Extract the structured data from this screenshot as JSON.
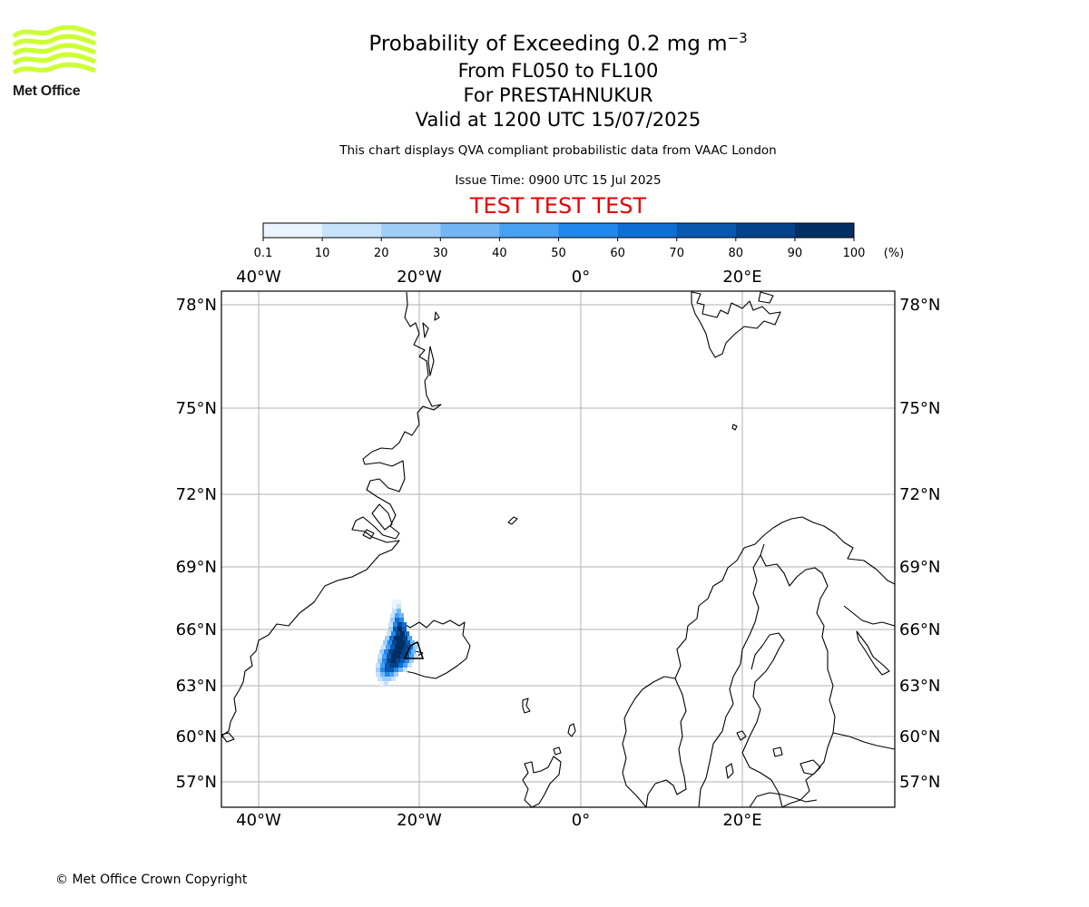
{
  "logo": {
    "text": "Met Office",
    "color": "#ccff33"
  },
  "title": {
    "line1_prefix": "Probability of Exceeding 0.2 mg m",
    "line1_sup": "−3",
    "line2": "From FL050 to FL100",
    "line3": "For PRESTAHNUKUR",
    "line4": "Valid at 1200 UTC 15/07/2025"
  },
  "subtitle": "This chart displays QVA compliant probabilistic data from VAAC London",
  "issue_time": "Issue Time: 0900 UTC 15 Jul 2025",
  "test_banner": "TEST TEST TEST",
  "colorbar": {
    "ticks": [
      "0.1",
      "10",
      "20",
      "30",
      "40",
      "50",
      "60",
      "70",
      "80",
      "90",
      "100"
    ],
    "unit": "(%)",
    "colors": [
      "#eaf4fe",
      "#c7e2fb",
      "#a0cdf8",
      "#72b6f5",
      "#48a1f3",
      "#2189ec",
      "#0d6fd5",
      "#0858b0",
      "#05448b",
      "#032e62"
    ]
  },
  "map": {
    "lon_labels": [
      "40°W",
      "20°W",
      "0°",
      "20°E"
    ],
    "lat_labels": [
      "78°N",
      "75°N",
      "72°N",
      "69°N",
      "66°N",
      "63°N",
      "60°N",
      "57°N"
    ],
    "lon_values": [
      -40,
      -20,
      0,
      20
    ],
    "lat_values": [
      78,
      75,
      72,
      69,
      66,
      63,
      60,
      57
    ]
  },
  "copyright": "© Met Office Crown Copyright"
}
